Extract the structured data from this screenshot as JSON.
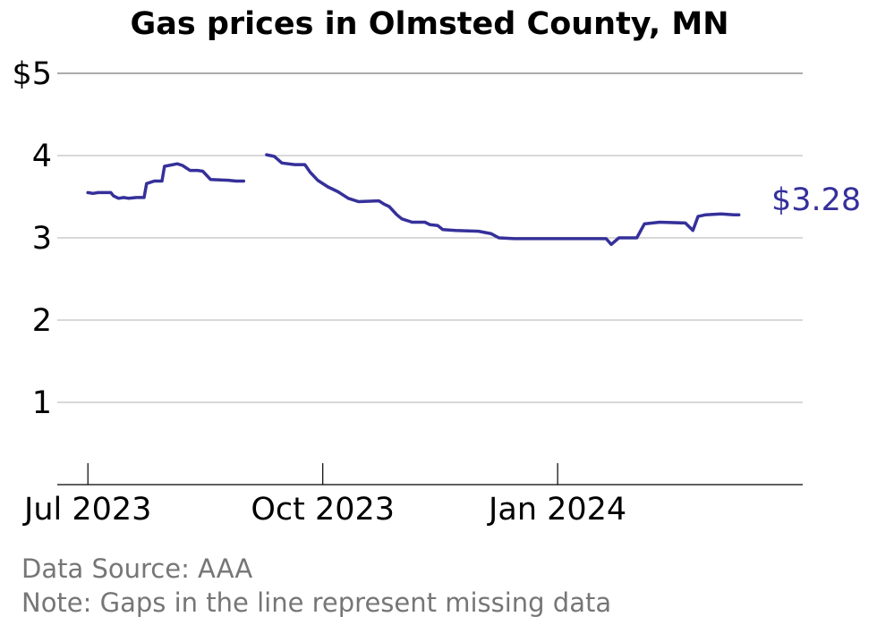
{
  "chart_data": {
    "type": "line",
    "title": "Gas prices in Olmsted County, MN",
    "xlabel": "",
    "ylabel": "",
    "ylim": [
      0,
      5
    ],
    "xlim": [
      "2023-06-19",
      "2024-04-06"
    ],
    "yticks": [
      {
        "value": 5,
        "label": "$5"
      },
      {
        "value": 4,
        "label": "4"
      },
      {
        "value": 3,
        "label": "3"
      },
      {
        "value": 2,
        "label": "2"
      },
      {
        "value": 1,
        "label": "1"
      }
    ],
    "xticks": [
      {
        "date": "2023-07-01",
        "label": "Jul 2023"
      },
      {
        "date": "2023-10-01",
        "label": "Oct 2023"
      },
      {
        "date": "2024-01-01",
        "label": "Jan 2024"
      }
    ],
    "grid": true,
    "series_color": "#35309a",
    "end_label": "$3.28",
    "series": [
      {
        "segments": [
          [
            [
              "2023-07-01",
              3.55
            ],
            [
              "2023-07-03",
              3.54
            ],
            [
              "2023-07-05",
              3.55
            ],
            [
              "2023-07-10",
              3.55
            ],
            [
              "2023-07-11",
              3.51
            ],
            [
              "2023-07-13",
              3.48
            ],
            [
              "2023-07-15",
              3.49
            ],
            [
              "2023-07-17",
              3.48
            ],
            [
              "2023-07-20",
              3.49
            ],
            [
              "2023-07-23",
              3.49
            ],
            [
              "2023-07-24",
              3.66
            ],
            [
              "2023-07-27",
              3.69
            ],
            [
              "2023-07-30",
              3.69
            ],
            [
              "2023-07-31",
              3.87
            ],
            [
              "2023-08-05",
              3.9
            ],
            [
              "2023-08-07",
              3.88
            ],
            [
              "2023-08-10",
              3.82
            ],
            [
              "2023-08-13",
              3.82
            ],
            [
              "2023-08-15",
              3.81
            ],
            [
              "2023-08-18",
              3.71
            ],
            [
              "2023-08-25",
              3.7
            ],
            [
              "2023-08-28",
              3.69
            ],
            [
              "2023-08-31",
              3.69
            ]
          ],
          [
            [
              "2023-09-09",
              4.01
            ],
            [
              "2023-09-12",
              3.99
            ],
            [
              "2023-09-15",
              3.91
            ],
            [
              "2023-09-20",
              3.89
            ],
            [
              "2023-09-24",
              3.89
            ],
            [
              "2023-09-26",
              3.8
            ],
            [
              "2023-09-29",
              3.7
            ],
            [
              "2023-10-03",
              3.62
            ],
            [
              "2023-10-07",
              3.56
            ],
            [
              "2023-10-11",
              3.48
            ],
            [
              "2023-10-15",
              3.44
            ],
            [
              "2023-10-23",
              3.45
            ],
            [
              "2023-10-25",
              3.41
            ],
            [
              "2023-10-27",
              3.38
            ],
            [
              "2023-10-30",
              3.28
            ],
            [
              "2023-11-01",
              3.23
            ],
            [
              "2023-11-05",
              3.19
            ],
            [
              "2023-11-10",
              3.19
            ],
            [
              "2023-11-12",
              3.16
            ],
            [
              "2023-11-15",
              3.15
            ],
            [
              "2023-11-17",
              3.1
            ],
            [
              "2023-11-22",
              3.09
            ],
            [
              "2023-12-01",
              3.08
            ],
            [
              "2023-12-06",
              3.05
            ],
            [
              "2023-12-09",
              3.0
            ],
            [
              "2023-12-15",
              2.99
            ],
            [
              "2023-12-25",
              2.99
            ],
            [
              "2024-01-01",
              2.99
            ],
            [
              "2024-01-10",
              2.99
            ],
            [
              "2024-01-15",
              2.99
            ],
            [
              "2024-01-20",
              2.99
            ],
            [
              "2024-01-22",
              2.92
            ],
            [
              "2024-01-25",
              3.0
            ],
            [
              "2024-02-01",
              3.0
            ],
            [
              "2024-02-04",
              3.17
            ],
            [
              "2024-02-10",
              3.19
            ],
            [
              "2024-02-20",
              3.18
            ],
            [
              "2024-02-23",
              3.09
            ],
            [
              "2024-02-25",
              3.26
            ],
            [
              "2024-02-28",
              3.28
            ],
            [
              "2024-03-05",
              3.29
            ],
            [
              "2024-03-10",
              3.28
            ],
            [
              "2024-03-12",
              3.28
            ]
          ]
        ]
      }
    ]
  },
  "footer": {
    "source": "Data Source: AAA",
    "note": "Note: Gaps in the line represent missing data"
  }
}
